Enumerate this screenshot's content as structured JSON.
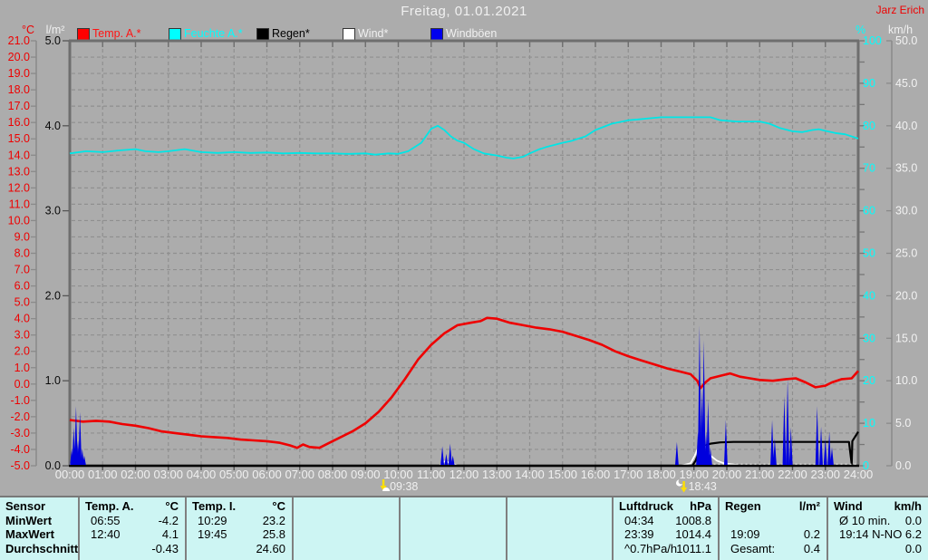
{
  "header": {
    "title": "Freitag, 01.01.2021",
    "station": "Jarz Erich"
  },
  "legend": [
    {
      "id": "temp-a",
      "label": "Temp. A.*",
      "swatch": "#ff0000",
      "text": "#ff1414"
    },
    {
      "id": "feuchte-a",
      "label": "Feuchte A.*",
      "swatch": "#00ffff",
      "text": "#00ffff"
    },
    {
      "id": "regen",
      "label": "Regen*",
      "swatch": "#000000",
      "text": "#000000"
    },
    {
      "id": "wind",
      "label": "Wind*",
      "swatch": "#ffffff",
      "text": "#f0f0f0"
    },
    {
      "id": "windboeen",
      "label": "Windböen",
      "swatch": "#0000ee",
      "text": "#f0f0f0"
    }
  ],
  "axes": {
    "temp": {
      "unit": "°C",
      "color": "#ee0000",
      "range": [
        -5,
        21
      ],
      "ticks": [
        "21.0",
        "20.0",
        "19.0",
        "18.0",
        "17.0",
        "16.0",
        "15.0",
        "14.0",
        "13.0",
        "12.0",
        "11.0",
        "10.0",
        "9.0",
        "8.0",
        "7.0",
        "6.0",
        "5.0",
        "4.0",
        "3.0",
        "2.0",
        "1.0",
        "0.0",
        "-1.0",
        "-2.0",
        "-3.0",
        "-4.0",
        "-5.0"
      ]
    },
    "rain": {
      "unit": "l/m²",
      "color": "#000000",
      "range": [
        0,
        5
      ],
      "ticks": [
        "5.0",
        "4.0",
        "3.0",
        "2.0",
        "1.0",
        "0.0"
      ]
    },
    "hum": {
      "unit": "%",
      "color": "#00ffff",
      "range": [
        0,
        100
      ],
      "ticks": [
        "100",
        "90",
        "80",
        "70",
        "60",
        "50",
        "40",
        "30",
        "20",
        "10",
        "0"
      ]
    },
    "wind": {
      "unit": "km/h",
      "color": "#f0f0f0",
      "range": [
        0,
        50
      ],
      "ticks": [
        "50.0",
        "45.0",
        "40.0",
        "35.0",
        "30.0",
        "25.0",
        "20.0",
        "15.0",
        "10.0",
        "5.0",
        "0.0"
      ]
    },
    "x": {
      "labels": [
        "00:00",
        "01:00",
        "02:00",
        "03:00",
        "04:00",
        "05:00",
        "06:00",
        "07:00",
        "08:00",
        "09:00",
        "10:00",
        "11:00",
        "12:00",
        "13:00",
        "14:00",
        "15:00",
        "16:00",
        "17:00",
        "18:00",
        "19:00",
        "20:00",
        "21:00",
        "22:00",
        "23:00",
        "24:00"
      ]
    }
  },
  "sun_markers": [
    {
      "type": "sunrise",
      "time": "09:38",
      "hour": 9.63
    },
    {
      "type": "sunset",
      "time": "18:43",
      "hour": 18.72
    }
  ],
  "chart_data": {
    "type": "line",
    "title": "Freitag, 01.01.2021",
    "x_unit": "hours",
    "x_range": [
      0,
      24
    ],
    "grid": true,
    "series": [
      {
        "name": "Feuchte A.",
        "axis": "hum",
        "unit": "%",
        "color": "#00e6e6",
        "width": 1.8,
        "points": [
          [
            0,
            73.5
          ],
          [
            0.5,
            74
          ],
          [
            1,
            73.8
          ],
          [
            1.5,
            74.2
          ],
          [
            2,
            74.5
          ],
          [
            2.3,
            74
          ],
          [
            2.7,
            73.8
          ],
          [
            3,
            74
          ],
          [
            3.5,
            74.5
          ],
          [
            4,
            73.8
          ],
          [
            4.5,
            73.6
          ],
          [
            5,
            73.8
          ],
          [
            5.5,
            73.6
          ],
          [
            6,
            73.7
          ],
          [
            6.5,
            73.5
          ],
          [
            7,
            73.6
          ],
          [
            7.5,
            73.5
          ],
          [
            8,
            73.5
          ],
          [
            8.5,
            73.4
          ],
          [
            9,
            73.5
          ],
          [
            9.3,
            73.2
          ],
          [
            9.7,
            73.5
          ],
          [
            10,
            73.4
          ],
          [
            10.3,
            74
          ],
          [
            10.7,
            76
          ],
          [
            11,
            79.3
          ],
          [
            11.2,
            80
          ],
          [
            11.4,
            79
          ],
          [
            11.6,
            77.5
          ],
          [
            11.8,
            76.5
          ],
          [
            12,
            76
          ],
          [
            12.3,
            74.5
          ],
          [
            12.6,
            73.5
          ],
          [
            13,
            73
          ],
          [
            13.3,
            72.5
          ],
          [
            13.5,
            72.3
          ],
          [
            13.8,
            72.7
          ],
          [
            14,
            73.5
          ],
          [
            14.3,
            74.5
          ],
          [
            14.5,
            75
          ],
          [
            15,
            76
          ],
          [
            15.3,
            76.5
          ],
          [
            15.7,
            77.5
          ],
          [
            16,
            79
          ],
          [
            16.5,
            80.5
          ],
          [
            17,
            81.3
          ],
          [
            17.3,
            81.5
          ],
          [
            17.7,
            81.8
          ],
          [
            18,
            82
          ],
          [
            18.5,
            82
          ],
          [
            19,
            82
          ],
          [
            19.5,
            82
          ],
          [
            19.8,
            81.3
          ],
          [
            20.3,
            81
          ],
          [
            21,
            81
          ],
          [
            21.3,
            80.5
          ],
          [
            21.6,
            79.5
          ],
          [
            22,
            78.7
          ],
          [
            22.3,
            78.5
          ],
          [
            22.6,
            79
          ],
          [
            22.8,
            79.2
          ],
          [
            23,
            78.8
          ],
          [
            23.3,
            78.3
          ],
          [
            23.6,
            78
          ],
          [
            24,
            77
          ]
        ]
      },
      {
        "name": "Temp. A.",
        "axis": "temp",
        "unit": "°C",
        "color": "#ee0000",
        "width": 2.6,
        "points": [
          [
            0,
            -2.2
          ],
          [
            0.4,
            -2.3
          ],
          [
            0.8,
            -2.25
          ],
          [
            1.2,
            -2.3
          ],
          [
            1.6,
            -2.45
          ],
          [
            2,
            -2.55
          ],
          [
            2.4,
            -2.7
          ],
          [
            2.8,
            -2.9
          ],
          [
            3.2,
            -3.0
          ],
          [
            3.6,
            -3.1
          ],
          [
            4,
            -3.2
          ],
          [
            4.4,
            -3.25
          ],
          [
            4.8,
            -3.3
          ],
          [
            5.2,
            -3.4
          ],
          [
            5.6,
            -3.45
          ],
          [
            6,
            -3.5
          ],
          [
            6.4,
            -3.6
          ],
          [
            6.7,
            -3.75
          ],
          [
            6.92,
            -3.9
          ],
          [
            7.1,
            -3.7
          ],
          [
            7.3,
            -3.85
          ],
          [
            7.6,
            -3.9
          ],
          [
            7.9,
            -3.6
          ],
          [
            8.2,
            -3.3
          ],
          [
            8.6,
            -2.9
          ],
          [
            9,
            -2.4
          ],
          [
            9.4,
            -1.7
          ],
          [
            9.8,
            -0.8
          ],
          [
            10.2,
            0.3
          ],
          [
            10.6,
            1.5
          ],
          [
            11,
            2.4
          ],
          [
            11.4,
            3.1
          ],
          [
            11.8,
            3.6
          ],
          [
            12.2,
            3.75
          ],
          [
            12.5,
            3.85
          ],
          [
            12.7,
            4.05
          ],
          [
            13,
            4.0
          ],
          [
            13.4,
            3.75
          ],
          [
            13.8,
            3.6
          ],
          [
            14.2,
            3.45
          ],
          [
            14.6,
            3.35
          ],
          [
            15,
            3.2
          ],
          [
            15.4,
            2.95
          ],
          [
            15.8,
            2.7
          ],
          [
            16.2,
            2.4
          ],
          [
            16.6,
            2.0
          ],
          [
            17,
            1.7
          ],
          [
            17.4,
            1.45
          ],
          [
            17.8,
            1.2
          ],
          [
            18.2,
            0.95
          ],
          [
            18.6,
            0.75
          ],
          [
            18.9,
            0.6
          ],
          [
            19.1,
            0.2
          ],
          [
            19.2,
            -0.25
          ],
          [
            19.35,
            0.1
          ],
          [
            19.5,
            0.35
          ],
          [
            19.8,
            0.5
          ],
          [
            20.1,
            0.65
          ],
          [
            20.4,
            0.45
          ],
          [
            20.7,
            0.35
          ],
          [
            21,
            0.25
          ],
          [
            21.4,
            0.2
          ],
          [
            21.8,
            0.3
          ],
          [
            22.1,
            0.35
          ],
          [
            22.4,
            0.1
          ],
          [
            22.7,
            -0.2
          ],
          [
            23,
            -0.1
          ],
          [
            23.2,
            0.1
          ],
          [
            23.5,
            0.3
          ],
          [
            23.8,
            0.35
          ],
          [
            24,
            0.8
          ]
        ]
      },
      {
        "name": "Regen",
        "axis": "rain",
        "unit": "l/m²",
        "color": "#000000",
        "width": 2.2,
        "points": [
          [
            0,
            0
          ],
          [
            18.95,
            0
          ],
          [
            19.05,
            0.06
          ],
          [
            19.15,
            0.16
          ],
          [
            19.3,
            0.23
          ],
          [
            19.5,
            0.26
          ],
          [
            19.8,
            0.275
          ],
          [
            20.2,
            0.28
          ],
          [
            23.72,
            0.28
          ],
          [
            23.8,
            0.02
          ],
          [
            23.82,
            0.29
          ],
          [
            24,
            0.4
          ]
        ]
      }
    ],
    "wind_line": {
      "name": "Wind",
      "axis": "wind",
      "unit": "km/h",
      "color": "#ffffff",
      "width": 1.8,
      "segments": [
        [
          [
            0,
            0
          ],
          [
            0.06,
            0.4
          ],
          [
            0.12,
            1.2
          ],
          [
            0.2,
            1.5
          ],
          [
            0.28,
            0.8
          ],
          [
            0.38,
            0.3
          ],
          [
            0.5,
            0
          ]
        ],
        [
          [
            11.25,
            0
          ],
          [
            11.4,
            0.5
          ],
          [
            11.6,
            0.35
          ],
          [
            11.8,
            0
          ]
        ],
        [
          [
            18.6,
            0
          ],
          [
            18.9,
            0.3
          ],
          [
            19.05,
            1.4
          ],
          [
            19.2,
            2.9
          ],
          [
            19.35,
            2.2
          ],
          [
            19.5,
            1.2
          ],
          [
            19.7,
            0.6
          ],
          [
            19.9,
            0.3
          ],
          [
            20.3,
            0.1
          ]
        ]
      ],
      "dotted_baseline": {
        "from": 19.6,
        "to": 23.95
      }
    },
    "gusts": {
      "name": "Windböen",
      "axis": "wind",
      "unit": "km/h",
      "color": "#0000dd",
      "spikes": [
        [
          0.06,
          2.0
        ],
        [
          0.12,
          4.5
        ],
        [
          0.19,
          7.0
        ],
        [
          0.25,
          3.0
        ],
        [
          0.31,
          6.3
        ],
        [
          0.38,
          2.0
        ],
        [
          0.44,
          1.2
        ],
        [
          11.34,
          2.3
        ],
        [
          11.46,
          1.4
        ],
        [
          11.58,
          2.6
        ],
        [
          11.66,
          1.2
        ],
        [
          18.48,
          2.8
        ],
        [
          19.12,
          4.0
        ],
        [
          19.17,
          16.5
        ],
        [
          19.24,
          9.0
        ],
        [
          19.3,
          14.8
        ],
        [
          19.37,
          4.0
        ],
        [
          19.43,
          7.8
        ],
        [
          19.5,
          2.2
        ],
        [
          19.97,
          5.4
        ],
        [
          21.38,
          5.4
        ],
        [
          21.46,
          3.2
        ],
        [
          21.75,
          8.2
        ],
        [
          21.85,
          10.2
        ],
        [
          21.95,
          4.5
        ],
        [
          22.75,
          7.0
        ],
        [
          22.87,
          4.6
        ],
        [
          23.0,
          3.2
        ],
        [
          23.12,
          4.0
        ],
        [
          23.2,
          2.2
        ]
      ]
    },
    "axis_ranges": {
      "temp": [
        -5,
        21
      ],
      "rain": [
        0,
        5
      ],
      "hum": [
        0,
        100
      ],
      "wind": [
        0,
        50
      ]
    }
  },
  "table": {
    "row_labels": [
      "Sensor",
      "MinWert",
      "MaxWert",
      "Durchschnitt"
    ],
    "columns": [
      {
        "name": "Temp. A.",
        "unit": "°C",
        "rows": [
          [
            "06:55",
            "-4.2"
          ],
          [
            "12:40",
            "4.1"
          ],
          [
            "",
            "-0.43"
          ]
        ]
      },
      {
        "name": "Temp. I.",
        "unit": "°C",
        "rows": [
          [
            "10:29",
            "23.2"
          ],
          [
            "19:45",
            "25.8"
          ],
          [
            "",
            "24.60"
          ]
        ]
      },
      {
        "name": "",
        "unit": "",
        "rows": [
          [
            "",
            ""
          ],
          [
            "",
            ""
          ],
          [
            "",
            ""
          ]
        ]
      },
      {
        "name": "",
        "unit": "",
        "rows": [
          [
            "",
            ""
          ],
          [
            "",
            ""
          ],
          [
            "",
            ""
          ]
        ]
      },
      {
        "name": "",
        "unit": "",
        "rows": [
          [
            "",
            ""
          ],
          [
            "",
            ""
          ],
          [
            "",
            ""
          ]
        ]
      },
      {
        "name": "Luftdruck",
        "unit": "hPa",
        "rows": [
          [
            "04:34",
            "1008.8"
          ],
          [
            "23:39",
            "1014.4"
          ],
          [
            "^0.7hPa/h",
            "1011.1"
          ]
        ]
      },
      {
        "name": "Regen",
        "unit": "l/m²",
        "rows": [
          [
            "",
            ""
          ],
          [
            "19:09",
            "0.2"
          ],
          [
            "Gesamt:",
            "0.4"
          ]
        ]
      },
      {
        "name": "Wind",
        "unit": "km/h",
        "rows": [
          [
            "Ø 10 min.",
            "0.0"
          ],
          [
            "19:14",
            "N-NO 6.2"
          ],
          [
            "",
            "0.0"
          ]
        ]
      }
    ]
  }
}
